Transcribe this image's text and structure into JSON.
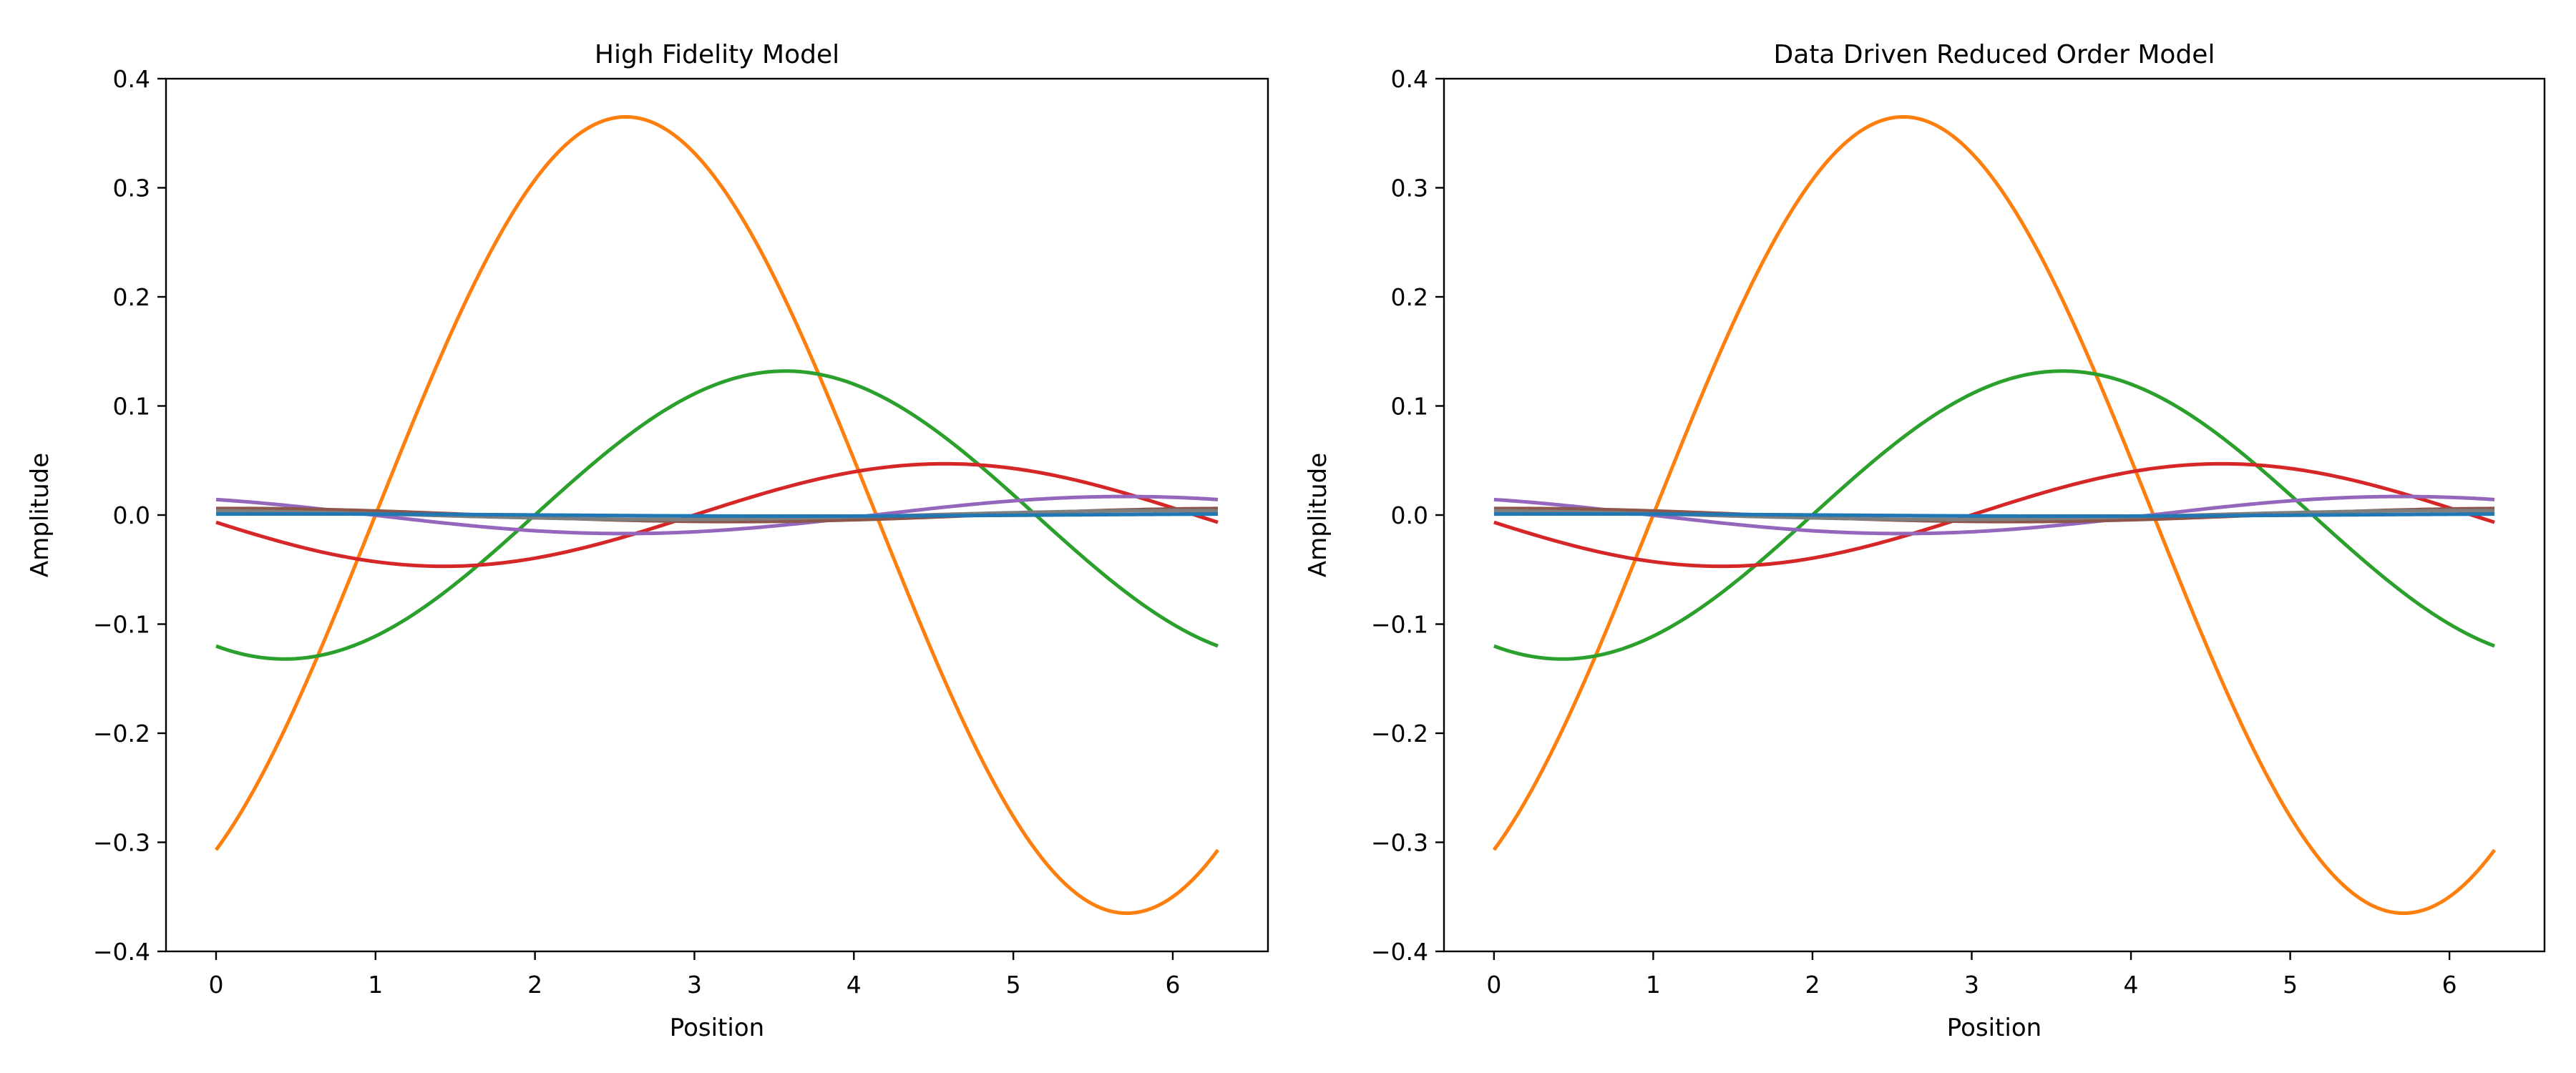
{
  "chart_data": [
    {
      "type": "line",
      "title": "High Fidelity Model",
      "xlabel": "Position",
      "ylabel": "Amplitude",
      "xlim": [
        -0.314,
        6.597
      ],
      "ylim": [
        -0.4,
        0.4
      ],
      "xticks": [
        0,
        1,
        2,
        3,
        4,
        5,
        6
      ],
      "yticks": [
        -0.4,
        -0.3,
        -0.2,
        -0.1,
        0.0,
        0.1,
        0.2,
        0.3,
        0.4
      ],
      "x_range": [
        0,
        6.283
      ],
      "grid": false,
      "series": [
        {
          "color": "#ff7f0e",
          "mode": 1,
          "amplitude": 0.365,
          "peak_x": 2.57
        },
        {
          "color": "#2ca02c",
          "mode": 1,
          "amplitude": 0.132,
          "peak_x": 3.57
        },
        {
          "color": "#d62728",
          "mode": 1,
          "amplitude": 0.047,
          "peak_x": 4.57
        },
        {
          "color": "#9467bd",
          "mode": 1,
          "amplitude": 0.017,
          "peak_x": 5.7
        },
        {
          "color": "#8c564b",
          "mode": 1,
          "amplitude": 0.006,
          "peak_x": 0.1
        },
        {
          "color": "#7f7f7f",
          "mode": 1,
          "amplitude": 0.004,
          "peak_x": 6.0
        },
        {
          "color": "#1f77b4",
          "mode": 1,
          "amplitude": 0.001,
          "peak_x": 0.5
        }
      ]
    },
    {
      "type": "line",
      "title": "Data Driven Reduced Order Model",
      "xlabel": "Position",
      "ylabel": "Amplitude",
      "xlim": [
        -0.314,
        6.597
      ],
      "ylim": [
        -0.4,
        0.4
      ],
      "xticks": [
        0,
        1,
        2,
        3,
        4,
        5,
        6
      ],
      "yticks": [
        -0.4,
        -0.3,
        -0.2,
        -0.1,
        0.0,
        0.1,
        0.2,
        0.3,
        0.4
      ],
      "x_range": [
        0,
        6.283
      ],
      "grid": false,
      "series": [
        {
          "color": "#ff7f0e",
          "mode": 1,
          "amplitude": 0.365,
          "peak_x": 2.57
        },
        {
          "color": "#2ca02c",
          "mode": 1,
          "amplitude": 0.132,
          "peak_x": 3.57
        },
        {
          "color": "#d62728",
          "mode": 1,
          "amplitude": 0.047,
          "peak_x": 4.57
        },
        {
          "color": "#9467bd",
          "mode": 1,
          "amplitude": 0.017,
          "peak_x": 5.7
        },
        {
          "color": "#8c564b",
          "mode": 1,
          "amplitude": 0.006,
          "peak_x": 0.1
        },
        {
          "color": "#7f7f7f",
          "mode": 1,
          "amplitude": 0.004,
          "peak_x": 6.0
        },
        {
          "color": "#1f77b4",
          "mode": 1,
          "amplitude": 0.001,
          "peak_x": 0.5
        }
      ]
    }
  ]
}
